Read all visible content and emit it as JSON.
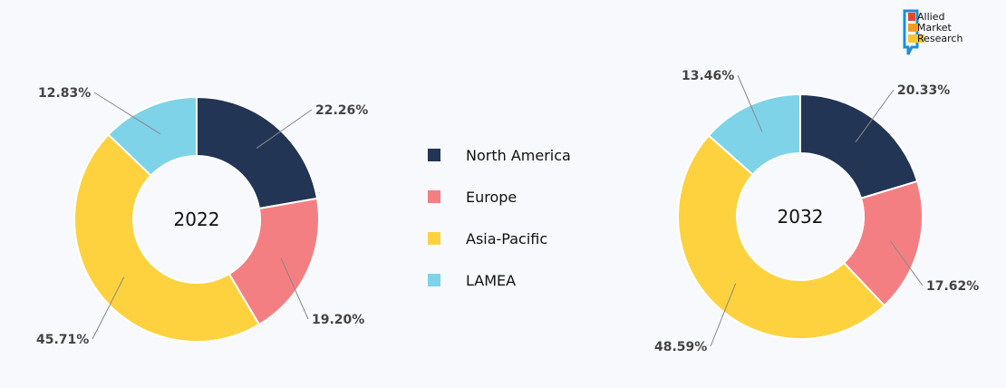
{
  "logo": {
    "lines": [
      "Allied",
      "Market",
      "Research"
    ]
  },
  "chart_data": [
    {
      "type": "pie",
      "donut": true,
      "center_label": "2022",
      "categories": [
        "North America",
        "Europe",
        "Asia-Pacific",
        "LAMEA"
      ],
      "values": [
        22.26,
        19.2,
        45.71,
        12.83
      ],
      "labels": [
        "22.26%",
        "19.20%",
        "45.71%",
        "12.83%"
      ],
      "colors": [
        "#233555",
        "#f47f82",
        "#fed23f",
        "#7ed3e8"
      ]
    },
    {
      "type": "pie",
      "donut": true,
      "center_label": "2032",
      "categories": [
        "North America",
        "Europe",
        "Asia-Pacific",
        "LAMEA"
      ],
      "values": [
        20.33,
        17.62,
        48.59,
        13.46
      ],
      "labels": [
        "20.33%",
        "17.62%",
        "48.59%",
        "13.46%"
      ],
      "colors": [
        "#233555",
        "#f47f82",
        "#fed23f",
        "#7ed3e8"
      ]
    }
  ],
  "legend": {
    "placement": "center",
    "items": [
      {
        "label": "North America",
        "color": "#233555"
      },
      {
        "label": "Europe",
        "color": "#f47f82"
      },
      {
        "label": "Asia-Pacific",
        "color": "#fed23f"
      },
      {
        "label": "LAMEA",
        "color": "#7ed3e8"
      }
    ]
  }
}
